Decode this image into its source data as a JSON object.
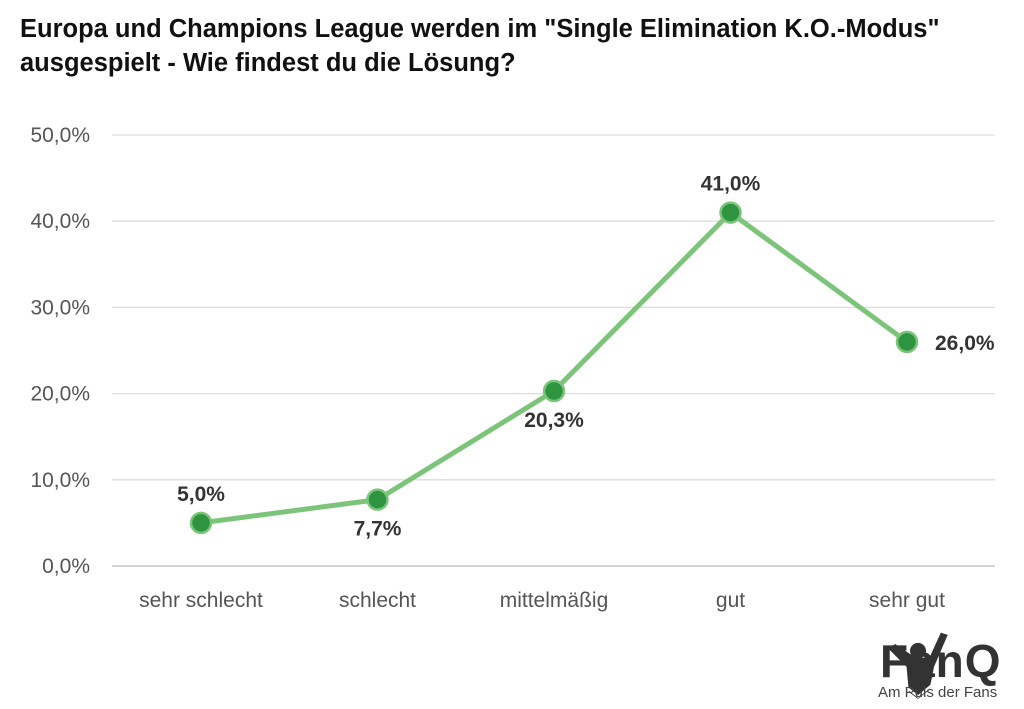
{
  "chart_data": {
    "type": "line",
    "title": "Europa und Champions League werden im \"Single Elimination K.O.-Modus\" ausgespielt - Wie findest du die Lösung?",
    "categories": [
      "sehr schlecht",
      "schlecht",
      "mittelmäßig",
      "gut",
      "sehr gut"
    ],
    "values": [
      5.0,
      7.7,
      20.3,
      41.0,
      26.0
    ],
    "data_labels": [
      "5,0%",
      "7,7%",
      "20,3%",
      "41,0%",
      "26,0%"
    ],
    "label_positions": [
      "above",
      "below",
      "below",
      "above",
      "right"
    ],
    "yticks": [
      0,
      10,
      20,
      30,
      40,
      50
    ],
    "ytick_labels": [
      "0,0%",
      "10,0%",
      "20,0%",
      "30,0%",
      "40,0%",
      "50,0%"
    ],
    "ylim": [
      0,
      50
    ],
    "xlabel": "",
    "ylabel": "",
    "grid": true,
    "line_color": "#7cc47a",
    "marker_color": "#2e9440"
  },
  "logo": {
    "name": "FanQ",
    "tagline": "Am Puls der Fans"
  }
}
